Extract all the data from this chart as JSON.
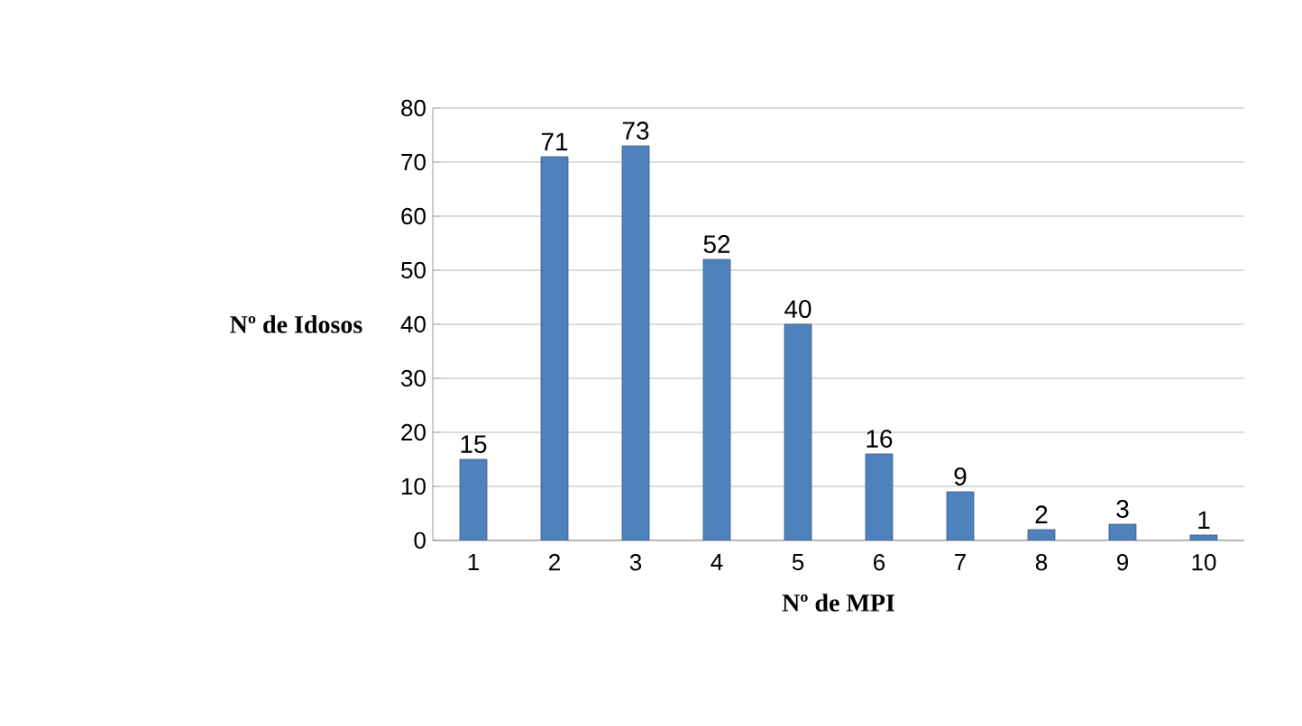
{
  "chart_data": {
    "type": "bar",
    "xlabel": "Nº de MPI",
    "ylabel": "Nº de Idosos",
    "categories": [
      "1",
      "2",
      "3",
      "4",
      "5",
      "6",
      "7",
      "8",
      "9",
      "10"
    ],
    "values": [
      15,
      71,
      73,
      52,
      40,
      16,
      9,
      2,
      3,
      1
    ],
    "color": "#4f81bd",
    "ylim": [
      0,
      80
    ],
    "yticks": [
      0,
      10,
      20,
      30,
      40,
      50,
      60,
      70,
      80
    ],
    "grid": "y",
    "data_labels": true,
    "legend": false
  }
}
